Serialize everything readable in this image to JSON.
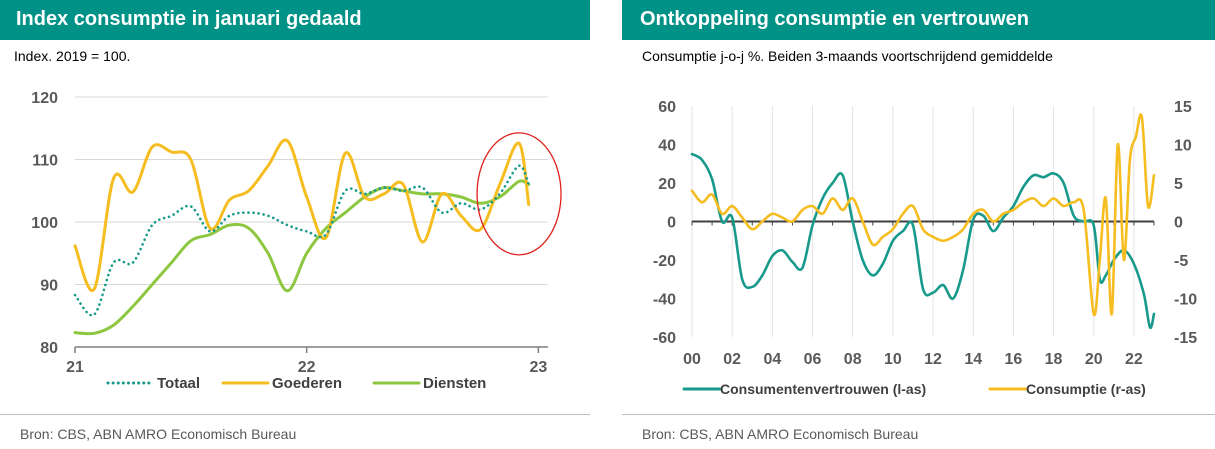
{
  "panels": {
    "left": {
      "title": "Index consumptie in januari gedaald",
      "subtitle": "Index. 2019 = 100.",
      "source": "Bron: CBS, ABN AMRO Economisch Bureau"
    },
    "right": {
      "title": "Ontkoppeling consumptie en vertrouwen",
      "subtitle": "Consumptie j-o-j %. Beiden 3-maands voortschrijdend gemiddelde",
      "source": "Bron: CBS, ABN AMRO Economisch Bureau"
    }
  },
  "chart_data": [
    {
      "type": "line",
      "ylim": [
        80,
        120
      ],
      "yticks": [
        80,
        90,
        100,
        110,
        120
      ],
      "xlim": [
        0,
        24.5
      ],
      "xticks": [
        {
          "x": 0,
          "label": "21"
        },
        {
          "x": 12,
          "label": "22"
        },
        {
          "x": 24,
          "label": "23"
        }
      ],
      "grid": "horizontal",
      "legend": "bottom",
      "annotation": {
        "shape": "ellipse",
        "color": "#e0201b",
        "x_center": 23,
        "y_center": 104.5
      },
      "series": [
        {
          "name": "Totaal",
          "color": "#179a8c",
          "style": "dotted",
          "x": [
            0,
            1,
            2,
            3,
            4,
            5,
            6,
            7,
            8,
            9,
            10,
            11,
            12,
            13,
            14,
            15,
            16,
            17,
            18,
            19,
            20,
            21,
            22,
            23,
            23.5
          ],
          "y": [
            88.3,
            85.2,
            93.5,
            93.5,
            99.5,
            101,
            102.5,
            98.5,
            101,
            101.5,
            101,
            99.5,
            98.5,
            98,
            105,
            104.5,
            105.5,
            105,
            105.5,
            101.5,
            103,
            102,
            104.5,
            109,
            106
          ]
        },
        {
          "name": "Goederen",
          "color": "#f5bd1f",
          "style": "solid",
          "x": [
            0,
            1,
            2,
            3,
            4,
            5,
            6,
            7,
            8,
            9,
            10,
            11,
            12,
            13,
            14,
            15,
            16,
            17,
            18,
            19,
            20,
            21,
            22,
            23,
            23.5
          ],
          "y": [
            96.2,
            89.3,
            107,
            104.8,
            112,
            111.2,
            110,
            99,
            103.5,
            105,
            109,
            113,
            104,
            97.5,
            111,
            104,
            104.5,
            106,
            96.8,
            104.5,
            101,
            98.8,
            106,
            112.6,
            102.8
          ]
        },
        {
          "name": "Diensten",
          "color": "#8dc63f",
          "style": "solid",
          "x": [
            0,
            1,
            2,
            3,
            4,
            5,
            6,
            7,
            8,
            9,
            10,
            11,
            12,
            13,
            14,
            15,
            16,
            17,
            18,
            19,
            20,
            21,
            22,
            23,
            23.5
          ],
          "y": [
            82.3,
            82.2,
            83.5,
            86.5,
            90,
            93.5,
            97,
            98,
            99.5,
            99,
            95,
            89,
            95,
            99,
            101.5,
            104,
            105.5,
            105,
            104.5,
            104.5,
            104,
            103,
            104,
            106.5,
            106
          ]
        }
      ]
    },
    {
      "type": "line",
      "x_label_ticks": [
        "00",
        "02",
        "04",
        "06",
        "08",
        "10",
        "12",
        "14",
        "16",
        "18",
        "20",
        "22"
      ],
      "xlim": [
        2000,
        2023
      ],
      "left_axis": {
        "ylim": [
          -60,
          60
        ],
        "yticks": [
          -60,
          -40,
          -20,
          0,
          20,
          40,
          60
        ]
      },
      "right_axis": {
        "ylim": [
          -15,
          15
        ],
        "yticks": [
          -15,
          -10,
          -5,
          0,
          5,
          10,
          15
        ]
      },
      "grid": "vertical",
      "legend": "bottom",
      "series": [
        {
          "name": "Consumentenvertrouwen (l-as)",
          "color": "#179a8c",
          "axis": "left",
          "x": [
            2000,
            2000.5,
            2001,
            2001.5,
            2002,
            2002.5,
            2003,
            2003.5,
            2004,
            2004.5,
            2005,
            2005.5,
            2006,
            2006.5,
            2007,
            2007.5,
            2008,
            2008.5,
            2009,
            2009.5,
            2010,
            2010.5,
            2011,
            2011.5,
            2012,
            2012.5,
            2013,
            2013.5,
            2014,
            2014.5,
            2015,
            2015.5,
            2016,
            2016.5,
            2017,
            2017.5,
            2018,
            2018.5,
            2019,
            2019.5,
            2020,
            2020.3,
            2020.6,
            2021,
            2021.5,
            2022,
            2022.5,
            2022.8,
            2023
          ],
          "y": [
            35,
            32,
            22,
            0,
            2,
            -30,
            -34,
            -28,
            -18,
            -15,
            -21,
            -24,
            -2,
            12,
            20,
            24,
            0,
            -20,
            -28,
            -22,
            -10,
            -5,
            -2,
            -35,
            -37,
            -33,
            -40,
            -25,
            1,
            3,
            -5,
            2,
            8,
            18,
            24,
            23,
            25,
            20,
            3,
            0,
            -2,
            -30,
            -28,
            -20,
            -15,
            -22,
            -38,
            -55,
            -48
          ]
        },
        {
          "name": "Consumptie (r-as)",
          "color": "#f5bd1f",
          "axis": "right",
          "x": [
            2000,
            2000.5,
            2001,
            2001.5,
            2002,
            2002.5,
            2003,
            2003.5,
            2004,
            2004.5,
            2005,
            2005.5,
            2006,
            2006.5,
            2007,
            2007.5,
            2008,
            2008.5,
            2009,
            2009.5,
            2010,
            2010.5,
            2011,
            2011.5,
            2012,
            2012.5,
            2013,
            2013.5,
            2014,
            2014.5,
            2015,
            2015.5,
            2016,
            2016.5,
            2017,
            2017.5,
            2018,
            2018.5,
            2019,
            2019.5,
            2020,
            2020.3,
            2020.6,
            2020.9,
            2021.2,
            2021.5,
            2021.8,
            2022.1,
            2022.4,
            2022.7,
            2023
          ],
          "y": [
            4,
            2.5,
            3.5,
            1,
            2,
            0.5,
            -1,
            0,
            1,
            0.5,
            0,
            1.5,
            2,
            1,
            3,
            1.5,
            3,
            0,
            -3,
            -2,
            -1,
            1,
            2,
            -1,
            -2,
            -2.5,
            -2,
            -1,
            1,
            1.5,
            0,
            1,
            1.5,
            2.5,
            3,
            2,
            3,
            2,
            2.5,
            1.5,
            -12,
            -5,
            3,
            -12,
            10,
            -5,
            8,
            11,
            13.5,
            2,
            6
          ]
        }
      ]
    }
  ]
}
